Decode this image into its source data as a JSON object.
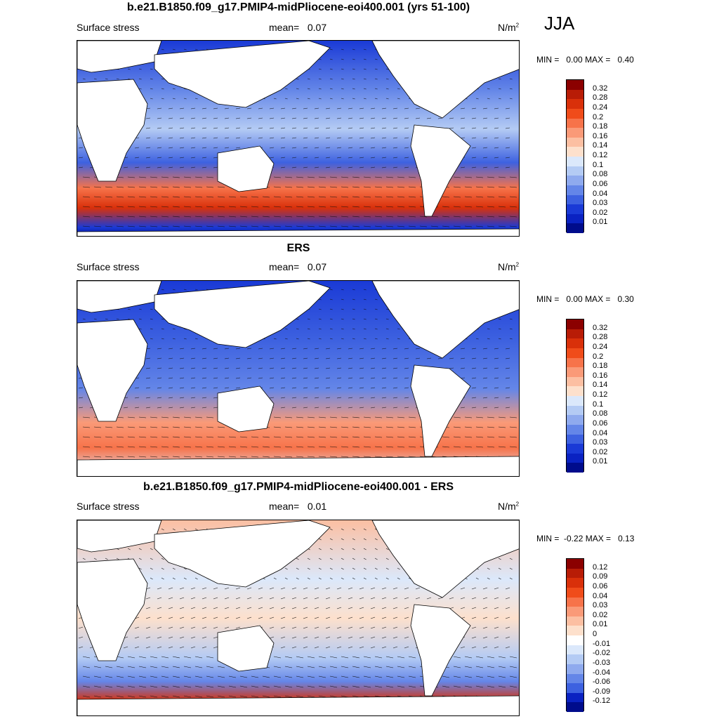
{
  "season": "JJA",
  "panels": [
    {
      "title": "b.e21.B1850.f09_g17.PMIP4-midPliocene-eoi400.001 (yrs 51-100)",
      "left_label": "Surface stress",
      "mean_label": "mean=",
      "mean_value": "0.07",
      "unit": "N/m",
      "unit_sup": "2",
      "min_label": "MIN =",
      "min_value": "0.00",
      "max_label": "MAX =",
      "max_value": "0.40",
      "legend_levels": [
        "0.32",
        "0.28",
        "0.24",
        "0.2",
        "0.18",
        "0.16",
        "0.14",
        "0.12",
        "0.1",
        "0.08",
        "0.06",
        "0.04",
        "0.03",
        "0.02",
        "0.01"
      ],
      "colors": [
        "#8b0000",
        "#b81c06",
        "#d9300a",
        "#f04c1a",
        "#f7734a",
        "#fa9a78",
        "#fcbfa2",
        "#fde0cc",
        "#dbe8fb",
        "#b4cbf4",
        "#8faaee",
        "#6486e8",
        "#3d61e0",
        "#1a3ad6",
        "#0a22c2",
        "#000c8c"
      ]
    },
    {
      "title": "ERS",
      "left_label": "Surface stress",
      "mean_label": "mean=",
      "mean_value": "0.07",
      "unit": "N/m",
      "unit_sup": "2",
      "min_label": "MIN =",
      "min_value": "0.00",
      "max_label": "MAX =",
      "max_value": "0.30",
      "legend_levels": [
        "0.32",
        "0.28",
        "0.24",
        "0.2",
        "0.18",
        "0.16",
        "0.14",
        "0.12",
        "0.1",
        "0.08",
        "0.06",
        "0.04",
        "0.03",
        "0.02",
        "0.01"
      ],
      "colors": [
        "#8b0000",
        "#b81c06",
        "#d9300a",
        "#f04c1a",
        "#f7734a",
        "#fa9a78",
        "#fcbfa2",
        "#fde0cc",
        "#dbe8fb",
        "#b4cbf4",
        "#8faaee",
        "#6486e8",
        "#3d61e0",
        "#1a3ad6",
        "#0a22c2",
        "#000c8c"
      ]
    },
    {
      "title": "b.e21.B1850.f09_g17.PMIP4-midPliocene-eoi400.001 - ERS",
      "left_label": "Surface stress",
      "mean_label": "mean=",
      "mean_value": "0.01",
      "unit": "N/m",
      "unit_sup": "2",
      "min_label": "MIN =",
      "min_value": "-0.22",
      "max_label": "MAX =",
      "max_value": "0.13",
      "legend_levels": [
        "0.12",
        "0.09",
        "0.06",
        "0.04",
        "0.03",
        "0.02",
        "0.01",
        "0",
        "-0.01",
        "-0.02",
        "-0.03",
        "-0.04",
        "-0.06",
        "-0.09",
        "-0.12"
      ],
      "colors": [
        "#8b0000",
        "#b81c06",
        "#d9300a",
        "#f04c1a",
        "#f7734a",
        "#fa9a78",
        "#fcbfa2",
        "#fde0cc",
        "#ffffff",
        "#dbe8fb",
        "#b4cbf4",
        "#8faaee",
        "#6486e8",
        "#3d61e0",
        "#0a22c2",
        "#000c8c"
      ]
    }
  ]
}
